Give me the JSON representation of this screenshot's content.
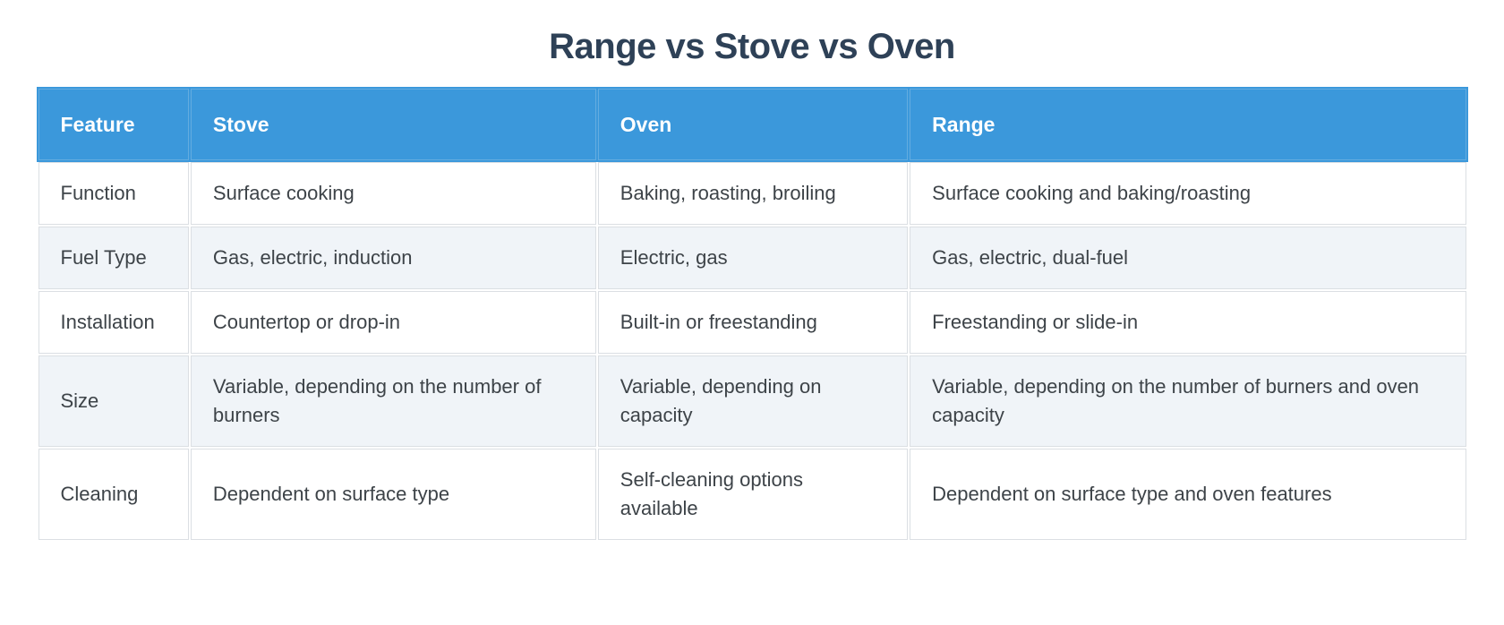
{
  "title": "Range vs Stove vs Oven",
  "table": {
    "columns": [
      "Feature",
      "Stove",
      "Oven",
      "Range"
    ],
    "rows": [
      {
        "cells": [
          "Function",
          "Surface cooking",
          "Baking, roasting, broiling",
          "Surface cooking and baking/roasting"
        ]
      },
      {
        "cells": [
          "Fuel Type",
          "Gas, electric, induction",
          "Electric, gas",
          "Gas, electric, dual-fuel"
        ]
      },
      {
        "cells": [
          "Installation",
          "Countertop or drop-in",
          "Built-in or freestanding",
          "Freestanding or slide-in"
        ]
      },
      {
        "cells": [
          "Size",
          "Variable, depending on the number of burners",
          "Variable, depending on capacity",
          "Variable, depending on the number of burners and oven capacity"
        ]
      },
      {
        "cells": [
          "Cleaning",
          "Dependent on surface type",
          "Self-cleaning options available",
          "Dependent on surface type and oven features"
        ]
      }
    ]
  },
  "colors": {
    "header_bg": "#3b98db",
    "header_border": "#63ace0",
    "header_text": "#ffffff",
    "title_text": "#2e4157",
    "body_text": "#3d4348",
    "row_bg": "#ffffff",
    "row_alt_bg": "#f0f4f8",
    "cell_border": "#dbdfe3",
    "page_bg": "#ffffff"
  }
}
